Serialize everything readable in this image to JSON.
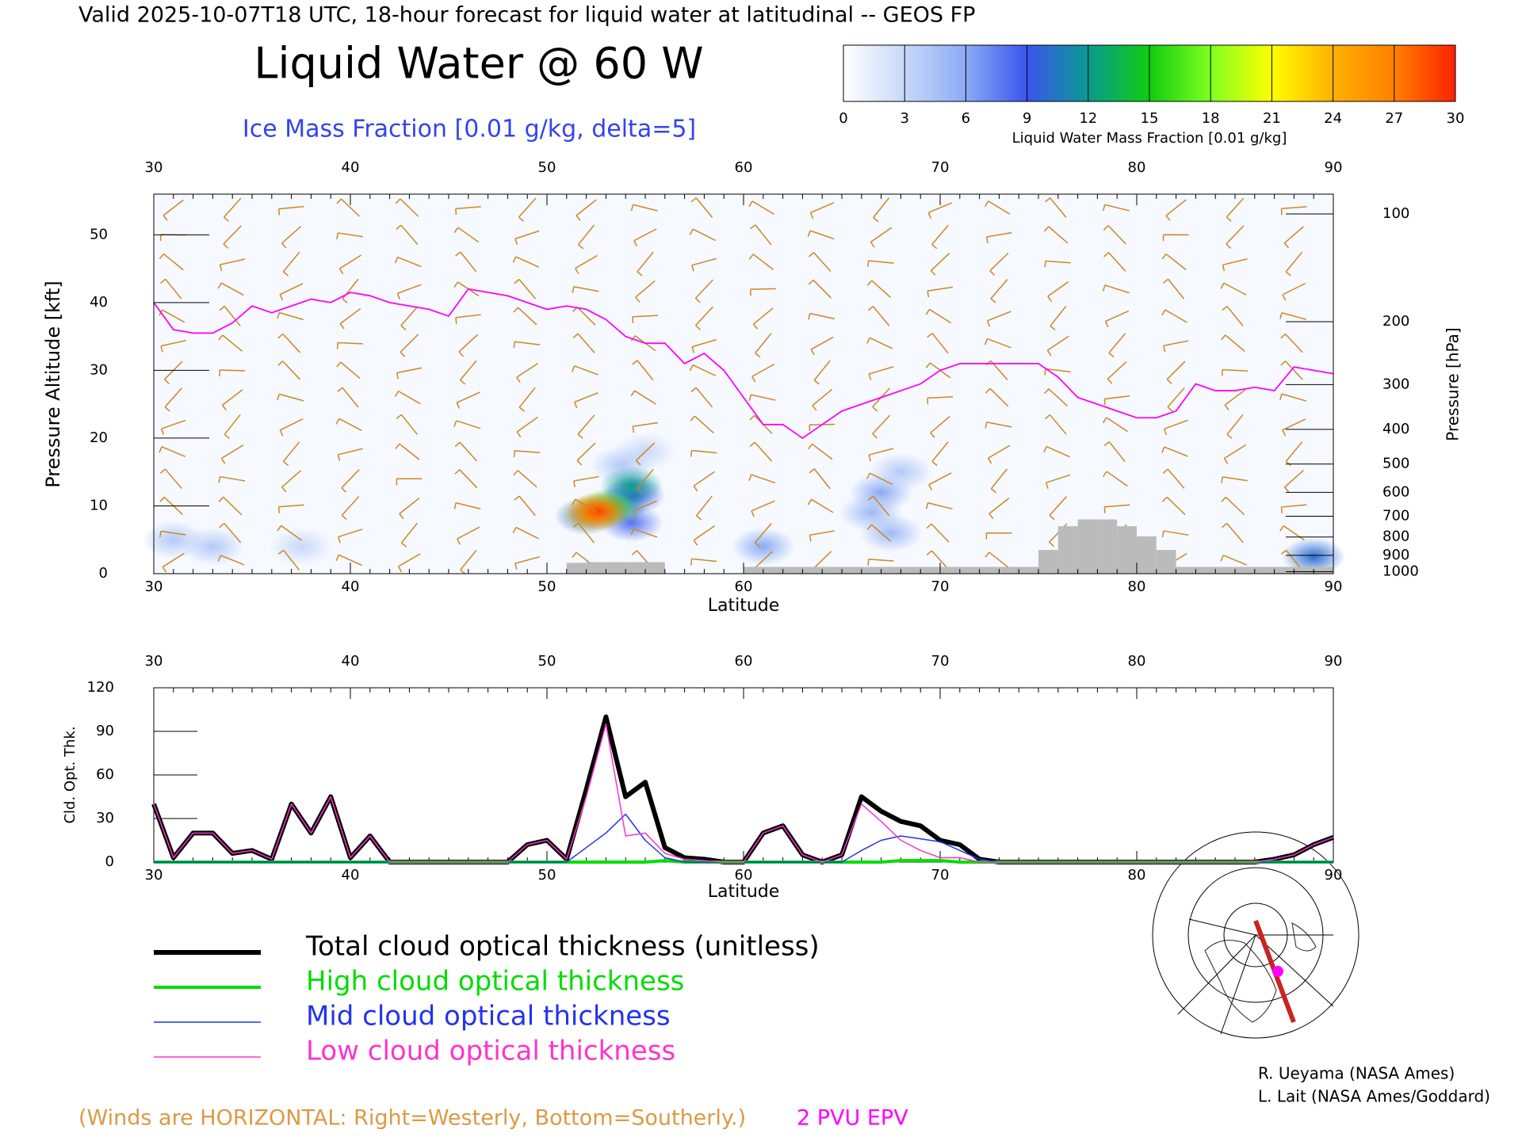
{
  "header": {
    "title": "Valid 2025-10-07T18 UTC, 18-hour forecast for liquid water at latitudinal -- GEOS FP"
  },
  "footer": {
    "winds_note": "(Winds are HORIZONTAL: Right=Westerly, Bottom=Southerly.)",
    "credits": [
      "R. Ueyama (NASA Ames)",
      "L. Lait (NASA Ames/Goddard)"
    ]
  },
  "chart_data": [
    {
      "type": "cross-section",
      "title": "Liquid Water @ 60 W",
      "subtitle": "Ice Mass Fraction [0.01 g/kg, delta=5]",
      "xlabel": "Latitude",
      "ylabel": "Pressure Altitude [kft]",
      "y2label": "Pressure [hPa]",
      "xlim": [
        30,
        90
      ],
      "xticks": [
        30,
        40,
        50,
        60,
        70,
        80,
        90
      ],
      "ylim": [
        0,
        56
      ],
      "yticks": [
        0,
        10,
        20,
        30,
        40,
        50
      ],
      "y2lim": [
        1013,
        88
      ],
      "y2scale": "log",
      "y2ticks": [
        100,
        200,
        300,
        400,
        500,
        600,
        700,
        800,
        900,
        1000
      ],
      "colorbar": {
        "label": "Liquid Water Mass Fraction [0.01 g/kg]",
        "ticks": [
          0,
          3,
          6,
          9,
          12,
          15,
          18,
          21,
          24,
          27,
          30
        ],
        "colors": [
          "#ffffff",
          "#c8d8f8",
          "#8aaaf5",
          "#3a55ee",
          "#0a9a90",
          "#10cc10",
          "#80ff20",
          "#ffff00",
          "#ffb000",
          "#ff8000",
          "#ff2000"
        ]
      },
      "x": [
        30,
        31,
        32,
        33,
        34,
        35,
        36,
        37,
        38,
        39,
        40,
        41,
        42,
        43,
        44,
        45,
        46,
        47,
        48,
        49,
        50,
        51,
        52,
        53,
        54,
        55,
        56,
        57,
        58,
        59,
        60,
        61,
        62,
        63,
        64,
        65,
        66,
        67,
        68,
        69,
        70,
        71,
        72,
        73,
        74,
        75,
        76,
        77,
        78,
        79,
        80,
        81,
        82,
        83,
        84,
        85,
        86,
        87,
        88,
        89,
        90
      ],
      "series": [
        {
          "name": "2 PVU EPV",
          "color": "#ff00ff",
          "values": [
            40,
            36,
            35.5,
            35.5,
            37,
            39.5,
            38.5,
            39.5,
            40.5,
            40,
            41.5,
            41,
            40,
            39.5,
            39,
            38,
            42,
            41.5,
            41,
            40,
            39,
            39.5,
            39,
            37.5,
            35,
            34,
            34,
            31,
            32.5,
            30,
            26,
            22,
            22,
            20,
            22,
            24,
            25,
            26,
            27,
            28,
            30,
            31,
            31,
            31,
            31,
            31,
            29,
            26,
            25,
            24,
            23,
            23,
            24,
            28,
            27,
            27,
            27.5,
            27,
            30.5,
            30,
            29.5
          ]
        }
      ],
      "terrain": {
        "color": "#bbbbbb",
        "values": [
          0,
          0,
          0,
          0,
          0,
          0,
          0,
          0,
          0,
          0,
          0,
          0,
          0,
          0,
          0,
          0,
          0,
          0,
          0,
          0,
          0,
          1.6,
          1.7,
          1.7,
          1.7,
          1.7,
          0,
          0,
          0,
          0,
          1,
          1,
          1,
          1,
          1,
          1,
          1,
          1,
          1,
          1,
          1,
          1,
          1,
          1,
          1,
          3.5,
          7,
          8,
          8,
          7,
          5.5,
          3.5,
          1,
          1,
          1,
          1,
          1,
          1,
          1,
          1
        ]
      },
      "cells": [
        {
          "lat": 67,
          "kft": 12,
          "value": 6
        },
        {
          "lat": 66.5,
          "kft": 9,
          "value": 5
        },
        {
          "lat": 68,
          "kft": 15,
          "value": 4
        },
        {
          "lat": 67.5,
          "kft": 6,
          "value": 5
        },
        {
          "lat": 61,
          "kft": 4,
          "value": 6
        },
        {
          "lat": 31,
          "kft": 5,
          "value": 4
        },
        {
          "lat": 33,
          "kft": 4,
          "value": 4
        },
        {
          "lat": 37.5,
          "kft": 4,
          "value": 3
        },
        {
          "lat": 89,
          "kft": 2.5,
          "value": 10
        },
        {
          "lat": 55,
          "kft": 18,
          "value": 3
        },
        {
          "lat": 53.8,
          "kft": 16,
          "value": 4
        },
        {
          "lat": 54.3,
          "kft": 7.5,
          "value": 8
        },
        {
          "lat": 54.4,
          "kft": 11.5,
          "value": 9
        },
        {
          "lat": 54.3,
          "kft": 13,
          "value": 12
        },
        {
          "lat": 52,
          "kft": 8.5,
          "value": 10
        },
        {
          "lat": 53.5,
          "kft": 10,
          "value": 12
        },
        {
          "lat": 52.9,
          "kft": 9.6,
          "value": 18
        },
        {
          "lat": 52.3,
          "kft": 8.8,
          "value": 22
        },
        {
          "lat": 52.6,
          "kft": 9.2,
          "value": 29
        }
      ]
    },
    {
      "type": "line",
      "xlabel": "Latitude",
      "ylabel": "Cld. Opt. Thk.",
      "xlim": [
        30,
        90
      ],
      "xticks": [
        30,
        40,
        50,
        60,
        70,
        80,
        90
      ],
      "ylim": [
        0,
        120
      ],
      "yticks": [
        0,
        30,
        60,
        90,
        120
      ],
      "x": [
        30,
        31,
        32,
        33,
        34,
        35,
        36,
        37,
        38,
        39,
        40,
        41,
        42,
        43,
        44,
        45,
        46,
        47,
        48,
        49,
        50,
        51,
        52,
        53,
        54,
        55,
        56,
        57,
        58,
        59,
        60,
        61,
        62,
        63,
        64,
        65,
        66,
        67,
        68,
        69,
        70,
        71,
        72,
        73,
        74,
        75,
        76,
        77,
        78,
        79,
        80,
        81,
        82,
        83,
        84,
        85,
        86,
        87,
        88,
        89,
        90
      ],
      "series": [
        {
          "name": "Total cloud optical thickness (unitless)",
          "color": "#000000",
          "width": 6,
          "values": [
            40,
            3,
            20,
            20,
            6,
            8,
            2,
            40,
            20,
            45,
            3,
            18,
            0,
            0,
            0,
            0,
            0,
            0,
            0,
            12,
            15,
            2,
            50,
            100,
            45,
            55,
            10,
            3,
            2,
            0,
            0,
            20,
            25,
            5,
            0,
            5,
            45,
            35,
            28,
            25,
            15,
            12,
            2,
            0,
            0,
            0,
            0,
            0,
            0,
            0,
            0,
            0,
            0,
            0,
            0,
            0,
            0,
            2,
            5,
            12,
            17
          ]
        },
        {
          "name": "High cloud optical thickness",
          "color": "#00dd00",
          "width": 4,
          "values": [
            0,
            0,
            0,
            0,
            0,
            0,
            0,
            0,
            0,
            0,
            0,
            0,
            0,
            0,
            0,
            0,
            0,
            0,
            0,
            0,
            0,
            0,
            0,
            0,
            0,
            0,
            1,
            0,
            0,
            0,
            0,
            0,
            0,
            0,
            0,
            0,
            0,
            0,
            1,
            1,
            1,
            0,
            0,
            0,
            0,
            0,
            0,
            0,
            0,
            0,
            0,
            0,
            0,
            0,
            0,
            0,
            0,
            0,
            0,
            0,
            0
          ]
        },
        {
          "name": "Mid cloud optical thickness",
          "color": "#2233ee",
          "width": 1.5,
          "values": [
            0,
            0,
            0,
            0,
            0,
            0,
            0,
            0,
            0,
            0,
            0,
            0,
            0,
            0,
            0,
            0,
            0,
            0,
            0,
            0,
            0,
            0,
            10,
            20,
            33,
            15,
            3,
            0,
            0,
            0,
            0,
            0,
            0,
            0,
            0,
            0,
            8,
            15,
            18,
            16,
            14,
            8,
            2,
            0,
            0,
            0,
            0,
            0,
            0,
            0,
            0,
            0,
            0,
            0,
            0,
            0,
            0,
            0,
            0,
            0,
            0
          ]
        },
        {
          "name": "Low cloud optical thickness",
          "color": "#ff33cc",
          "width": 1.5,
          "values": [
            40,
            3,
            20,
            20,
            6,
            8,
            2,
            40,
            20,
            45,
            3,
            18,
            0,
            0,
            0,
            0,
            0,
            0,
            0,
            12,
            15,
            2,
            45,
            95,
            18,
            20,
            6,
            2,
            1,
            0,
            0,
            20,
            25,
            5,
            0,
            5,
            40,
            28,
            15,
            8,
            3,
            3,
            0,
            0,
            0,
            0,
            0,
            0,
            0,
            0,
            0,
            0,
            0,
            0,
            0,
            0,
            0,
            2,
            5,
            12,
            17
          ]
        }
      ]
    }
  ]
}
